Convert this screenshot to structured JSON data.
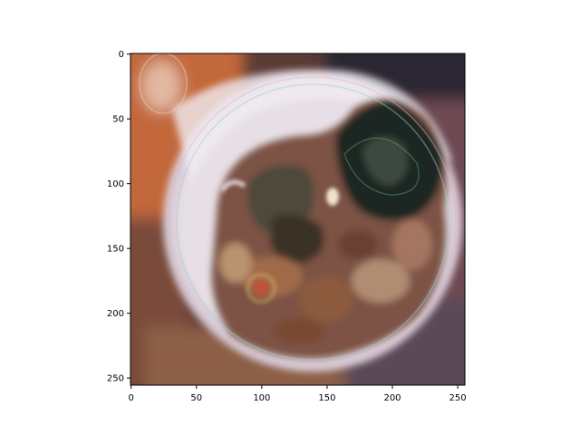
{
  "figure": {
    "kind": "image_display",
    "image_subject": "blurry reconstructed photo of a round bowl with dark greens, mushrooms and brown food, on an orange/dark background",
    "x_axis": {
      "ticks": [
        0,
        50,
        100,
        150,
        200,
        250
      ],
      "range": [
        0,
        255
      ]
    },
    "y_axis": {
      "ticks": [
        0,
        50,
        100,
        150,
        200,
        250
      ],
      "range": [
        0,
        255
      ],
      "inverted": true
    }
  },
  "palette": {
    "background_orange": "#c2673a",
    "background_dark": "#2a2630",
    "bowl_rim": "#ddd3dc",
    "bowl_inner": "#e7dfe6",
    "greens_dark": "#1d2520",
    "greens_mid": "#3c4a3f",
    "food_brown": "#7a4a32",
    "food_tan": "#b9926e",
    "highlight_cream": "#efe3cf"
  }
}
